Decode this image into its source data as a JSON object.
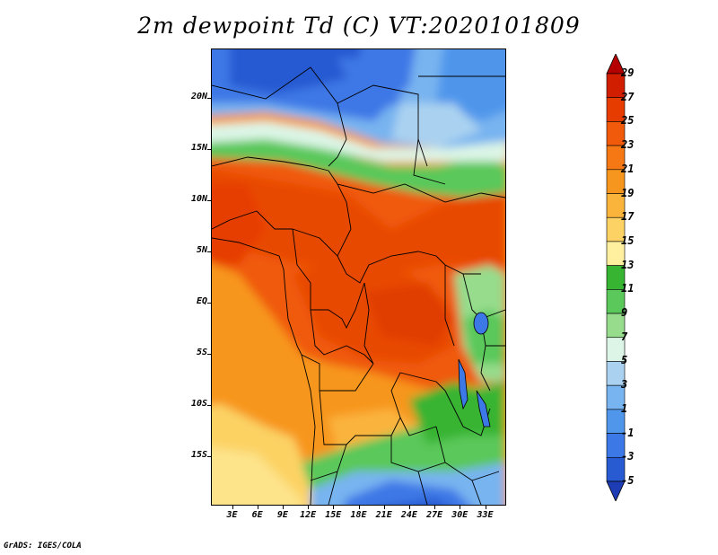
{
  "title": "2m dewpoint Td (C) VT:2020101809",
  "credit": "GrADS: IGES/COLA",
  "axes": {
    "y_ticks": [
      {
        "label": "20N",
        "lat": 20
      },
      {
        "label": "15N",
        "lat": 15
      },
      {
        "label": "10N",
        "lat": 10
      },
      {
        "label": "5N",
        "lat": 5
      },
      {
        "label": "EQ",
        "lat": 0
      },
      {
        "label": "5S",
        "lat": -5
      },
      {
        "label": "10S",
        "lat": -10
      },
      {
        "label": "15S",
        "lat": -15
      }
    ],
    "x_ticks": [
      {
        "label": "3E",
        "lon": 3
      },
      {
        "label": "6E",
        "lon": 6
      },
      {
        "label": "9E",
        "lon": 9
      },
      {
        "label": "12E",
        "lon": 12
      },
      {
        "label": "15E",
        "lon": 15
      },
      {
        "label": "18E",
        "lon": 18
      },
      {
        "label": "21E",
        "lon": 21
      },
      {
        "label": "24E",
        "lon": 24
      },
      {
        "label": "27E",
        "lon": 27
      },
      {
        "label": "30E",
        "lon": 30
      },
      {
        "label": "33E",
        "lon": 33
      }
    ],
    "lon_range": [
      0.5,
      35.5
    ],
    "lat_range": [
      -19.8,
      24.8
    ]
  },
  "colorbar": {
    "labels": [
      "29",
      "27",
      "25",
      "23",
      "21",
      "19",
      "17",
      "15",
      "13",
      "11",
      "9",
      "7",
      "5",
      "3",
      "1",
      "-1",
      "-3",
      "-5"
    ],
    "colors": [
      "#b40000",
      "#d21e00",
      "#e63c00",
      "#f05a0a",
      "#f57814",
      "#f7961e",
      "#fab43c",
      "#fcd264",
      "#fff0a0",
      "#37b432",
      "#5ac85a",
      "#96dc8c",
      "#dcf5e6",
      "#aad2f0",
      "#78b4f0",
      "#5096eb",
      "#3c78e6",
      "#285ad2",
      "#1e3cb4"
    ],
    "units": "C"
  }
}
